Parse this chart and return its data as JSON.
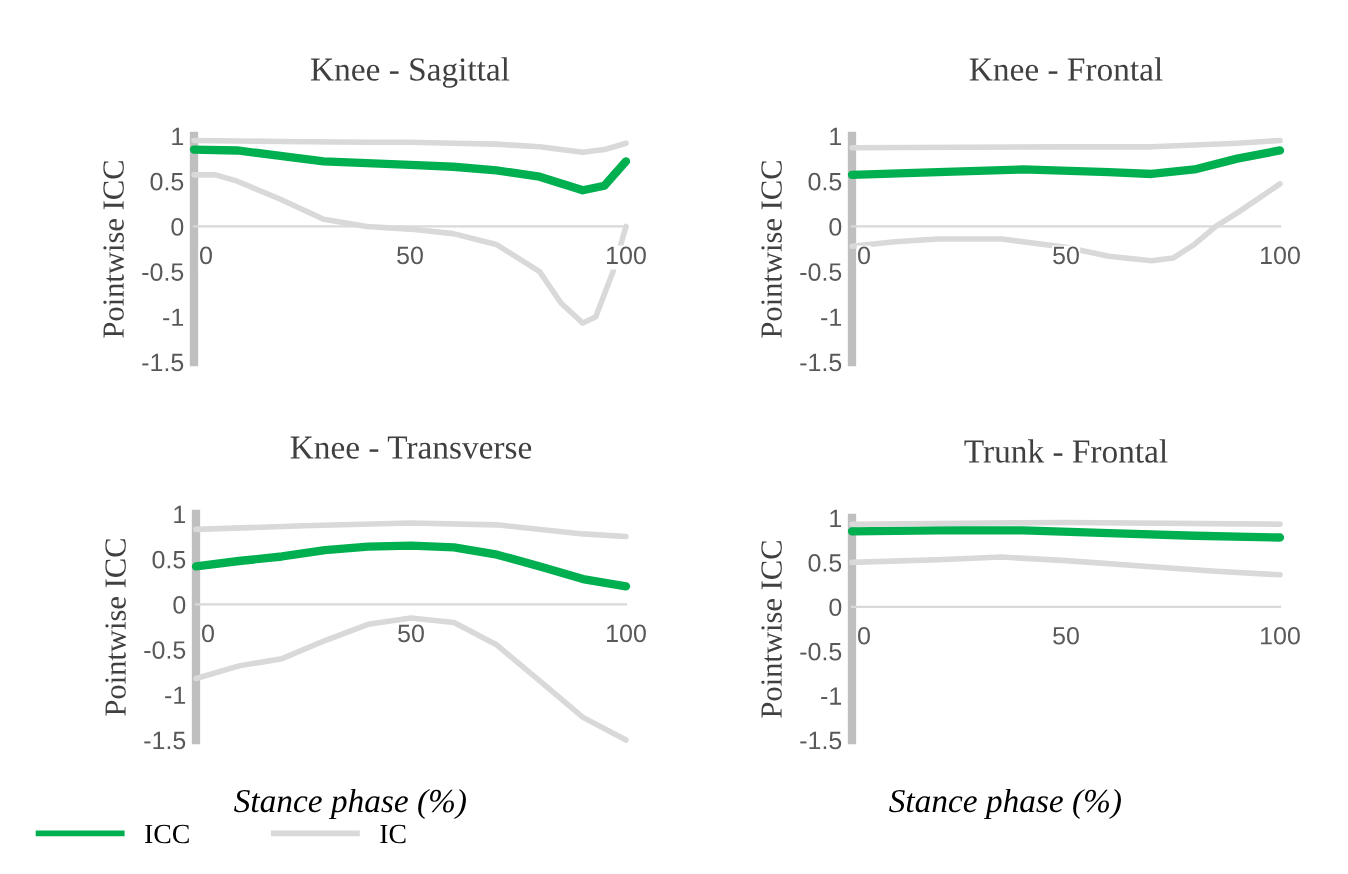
{
  "chart_data": [
    {
      "type": "line",
      "title": "Knee - Sagittal",
      "ylabel": "Pointwise ICC",
      "xlim": [
        0,
        100
      ],
      "ylim": [
        -1.5,
        1
      ],
      "xticks": [
        0,
        50,
        100
      ],
      "yticks": [
        -1.5,
        -1,
        -0.5,
        0,
        0.5,
        1
      ],
      "grid": false,
      "line_style": "solid",
      "marker": "none",
      "legend": "bottom",
      "series": [
        {
          "name": "ICC",
          "color": "#00b050",
          "x": [
            0,
            10,
            20,
            30,
            40,
            50,
            60,
            70,
            80,
            90,
            95,
            100
          ],
          "values": [
            0.85,
            0.84,
            0.78,
            0.72,
            0.7,
            0.68,
            0.66,
            0.62,
            0.55,
            0.4,
            0.45,
            0.72
          ]
        },
        {
          "name": "IC",
          "color": "#d9d9d9",
          "x": [
            0,
            20,
            40,
            50,
            60,
            70,
            80,
            90,
            95,
            100
          ],
          "values": [
            0.95,
            0.94,
            0.93,
            0.93,
            0.92,
            0.91,
            0.88,
            0.82,
            0.85,
            0.92
          ]
        },
        {
          "color": "#d9d9d9",
          "x": [
            0,
            5,
            10,
            20,
            30,
            40,
            50,
            60,
            70,
            80,
            85,
            90,
            93,
            97,
            100
          ],
          "values": [
            0.57,
            0.57,
            0.5,
            0.3,
            0.08,
            0,
            -0.03,
            -0.08,
            -0.2,
            -0.5,
            -0.85,
            -1.07,
            -1.0,
            -0.5,
            0
          ]
        }
      ]
    },
    {
      "type": "line",
      "title": "Knee - Frontal",
      "ylabel": "Pointwise ICC",
      "xlim": [
        0,
        100
      ],
      "ylim": [
        -1.5,
        1
      ],
      "xticks": [
        0,
        50,
        100
      ],
      "yticks": [
        -1.5,
        -1,
        -0.5,
        0,
        0.5,
        1
      ],
      "grid": false,
      "line_style": "solid",
      "marker": "none",
      "series": [
        {
          "color": "#00b050",
          "x": [
            0,
            20,
            40,
            60,
            70,
            80,
            90,
            100
          ],
          "values": [
            0.57,
            0.6,
            0.63,
            0.6,
            0.58,
            0.63,
            0.75,
            0.84
          ]
        },
        {
          "color": "#d9d9d9",
          "x": [
            0,
            50,
            70,
            90,
            100
          ],
          "values": [
            0.87,
            0.88,
            0.88,
            0.92,
            0.95
          ]
        },
        {
          "color": "#d9d9d9",
          "x": [
            0,
            10,
            20,
            35,
            50,
            60,
            70,
            75,
            80,
            85,
            90,
            100
          ],
          "values": [
            -0.22,
            -0.17,
            -0.14,
            -0.14,
            -0.23,
            -0.33,
            -0.38,
            -0.35,
            -0.2,
            0,
            0.15,
            0.47
          ]
        }
      ]
    },
    {
      "type": "line",
      "title": "Knee - Transverse",
      "ylabel": "Pointwise ICC",
      "xlabel": "Stance phase (%)",
      "xlim": [
        0,
        100
      ],
      "ylim": [
        -1.5,
        1
      ],
      "xticks": [
        0,
        50,
        100
      ],
      "yticks": [
        -1.5,
        -1,
        -0.5,
        0,
        0.5,
        1
      ],
      "grid": false,
      "line_style": "solid",
      "marker": "none",
      "series": [
        {
          "color": "#00b050",
          "x": [
            0,
            10,
            20,
            30,
            40,
            50,
            60,
            70,
            80,
            90,
            100
          ],
          "values": [
            0.42,
            0.48,
            0.53,
            0.6,
            0.64,
            0.65,
            0.63,
            0.55,
            0.42,
            0.28,
            0.2
          ]
        },
        {
          "color": "#d9d9d9",
          "x": [
            0,
            25,
            50,
            70,
            90,
            100
          ],
          "values": [
            0.83,
            0.87,
            0.9,
            0.88,
            0.78,
            0.75
          ]
        },
        {
          "color": "#d9d9d9",
          "x": [
            0,
            10,
            20,
            30,
            40,
            50,
            60,
            70,
            80,
            90,
            100
          ],
          "values": [
            -0.82,
            -0.68,
            -0.6,
            -0.4,
            -0.22,
            -0.15,
            -0.2,
            -0.45,
            -0.85,
            -1.25,
            -1.5
          ]
        }
      ]
    },
    {
      "type": "line",
      "title": "Trunk - Frontal",
      "ylabel": "Pointwise ICC",
      "xlabel": "Stance phase (%)",
      "xlim": [
        0,
        100
      ],
      "ylim": [
        -1.5,
        1
      ],
      "xticks": [
        0,
        50,
        100
      ],
      "yticks": [
        -1.5,
        -1,
        -0.5,
        0,
        0.5,
        1
      ],
      "grid": false,
      "line_style": "solid",
      "marker": "none",
      "series": [
        {
          "color": "#00b050",
          "x": [
            0,
            20,
            40,
            60,
            80,
            100
          ],
          "values": [
            0.85,
            0.86,
            0.86,
            0.83,
            0.8,
            0.78
          ]
        },
        {
          "color": "#d9d9d9",
          "x": [
            0,
            50,
            100
          ],
          "values": [
            0.93,
            0.95,
            0.93
          ]
        },
        {
          "color": "#d9d9d9",
          "x": [
            0,
            20,
            35,
            50,
            70,
            85,
            100
          ],
          "values": [
            0.5,
            0.53,
            0.56,
            0.52,
            0.45,
            0.4,
            0.36
          ]
        }
      ]
    }
  ]
}
